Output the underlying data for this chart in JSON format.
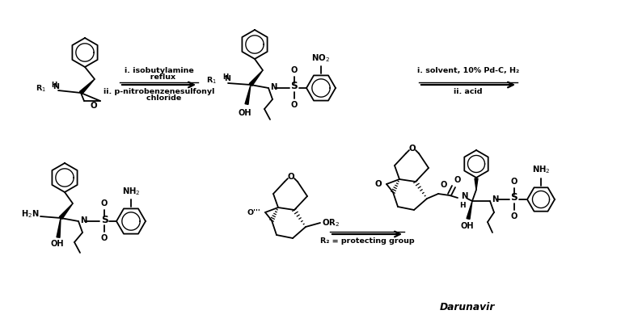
{
  "background_color": "#ffffff",
  "line_color": "#000000",
  "fig_width": 7.68,
  "fig_height": 4.05,
  "dpi": 100,
  "step1_line1": "i. isobutylamine",
  "step1_line2": "   reflux",
  "step1_line3": "ii. p-nitrobenzenesulfonyl",
  "step1_line4": "    chloride",
  "step2_line1": "i. solvent, 10% Pd-C, H₂",
  "step2_line2": "ii. acid",
  "step3_text": "R₂ = protecting group",
  "darunavir_label": "Darunavir"
}
